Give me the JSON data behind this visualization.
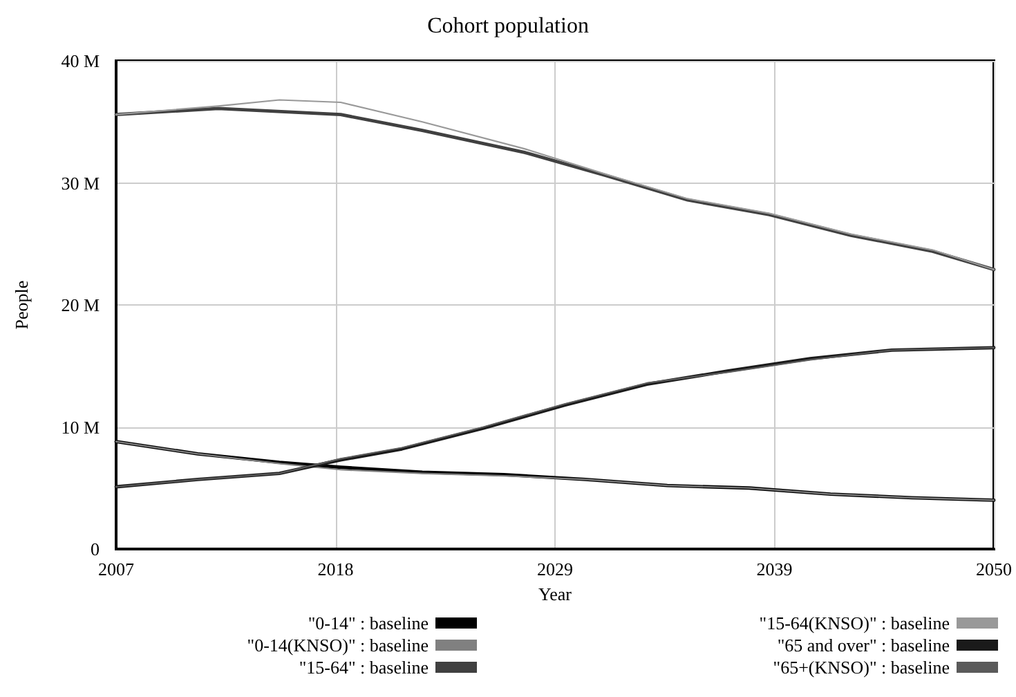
{
  "chart_data": {
    "type": "line",
    "title": "Cohort population",
    "xlabel": "Year",
    "ylabel": "People",
    "xlim": [
      2007,
      2050
    ],
    "xticks": [
      2007,
      {
        "value": 2017.75,
        "label": "2018"
      },
      {
        "value": 2028.5,
        "label": "2029"
      },
      {
        "value": 2039.25,
        "label": "2039"
      },
      2050
    ],
    "ylim": [
      0,
      40000000
    ],
    "yticks": [
      0,
      {
        "value": 10000000,
        "label": "10 M"
      },
      {
        "value": 20000000,
        "label": "20 M"
      },
      {
        "value": 30000000,
        "label": "30 M"
      },
      {
        "value": 40000000,
        "label": "40 M"
      }
    ],
    "grid": true,
    "legend": "bottom",
    "marker": "none",
    "line_style": "solid",
    "series": [
      {
        "name": "\"0-14\" : baseline",
        "color": "#000000",
        "x": [
          2007,
          2011,
          2015,
          2018,
          2022,
          2026,
          2030,
          2034,
          2038,
          2042,
          2046,
          2050
        ],
        "values": [
          8800000,
          7800000,
          7100000,
          6700000,
          6300000,
          6100000,
          5700000,
          5200000,
          5000000,
          4500000,
          4200000,
          4000000
        ]
      },
      {
        "name": "\"0-14(KNSO)\" : baseline",
        "color": "#808080",
        "x": [
          2007,
          2011,
          2015,
          2018,
          2022,
          2026,
          2030,
          2034,
          2038,
          2042,
          2046,
          2050
        ],
        "values": [
          8800000,
          7800000,
          7000000,
          6500000,
          6200000,
          6000000,
          5700000,
          5200000,
          5000000,
          4500000,
          4200000,
          4000000
        ]
      },
      {
        "name": "\"15-64\" : baseline",
        "color": "#404040",
        "x": [
          2007,
          2012,
          2018,
          2022,
          2027,
          2031,
          2035,
          2039,
          2043,
          2047,
          2050
        ],
        "values": [
          35600000,
          36100000,
          35600000,
          34300000,
          32500000,
          30600000,
          28600000,
          27400000,
          25700000,
          24400000,
          22900000
        ]
      },
      {
        "name": "\"15-64(KNSO)\" : baseline",
        "color": "#999999",
        "x": [
          2007,
          2012,
          2015,
          2018,
          2022,
          2027,
          2031,
          2035,
          2039,
          2043,
          2047,
          2050
        ],
        "values": [
          35600000,
          36300000,
          36800000,
          36600000,
          35000000,
          32800000,
          30700000,
          28700000,
          27500000,
          25800000,
          24500000,
          22900000
        ]
      },
      {
        "name": "\"65 and over\" : baseline",
        "color": "#1a1a1a",
        "x": [
          2007,
          2011,
          2015,
          2018,
          2021,
          2025,
          2029,
          2033,
          2037,
          2041,
          2045,
          2050
        ],
        "values": [
          5100000,
          5700000,
          6200000,
          7300000,
          8200000,
          9900000,
          11800000,
          13500000,
          14600000,
          15600000,
          16300000,
          16500000
        ]
      },
      {
        "name": "\"65+(KNSO)\" : baseline",
        "color": "#5a5a5a",
        "x": [
          2007,
          2011,
          2015,
          2018,
          2021,
          2025,
          2029,
          2033,
          2037,
          2041,
          2045,
          2050
        ],
        "values": [
          5100000,
          5700000,
          6200000,
          7400000,
          8300000,
          10000000,
          11900000,
          13600000,
          14500000,
          15500000,
          16300000,
          16500000
        ]
      }
    ]
  }
}
